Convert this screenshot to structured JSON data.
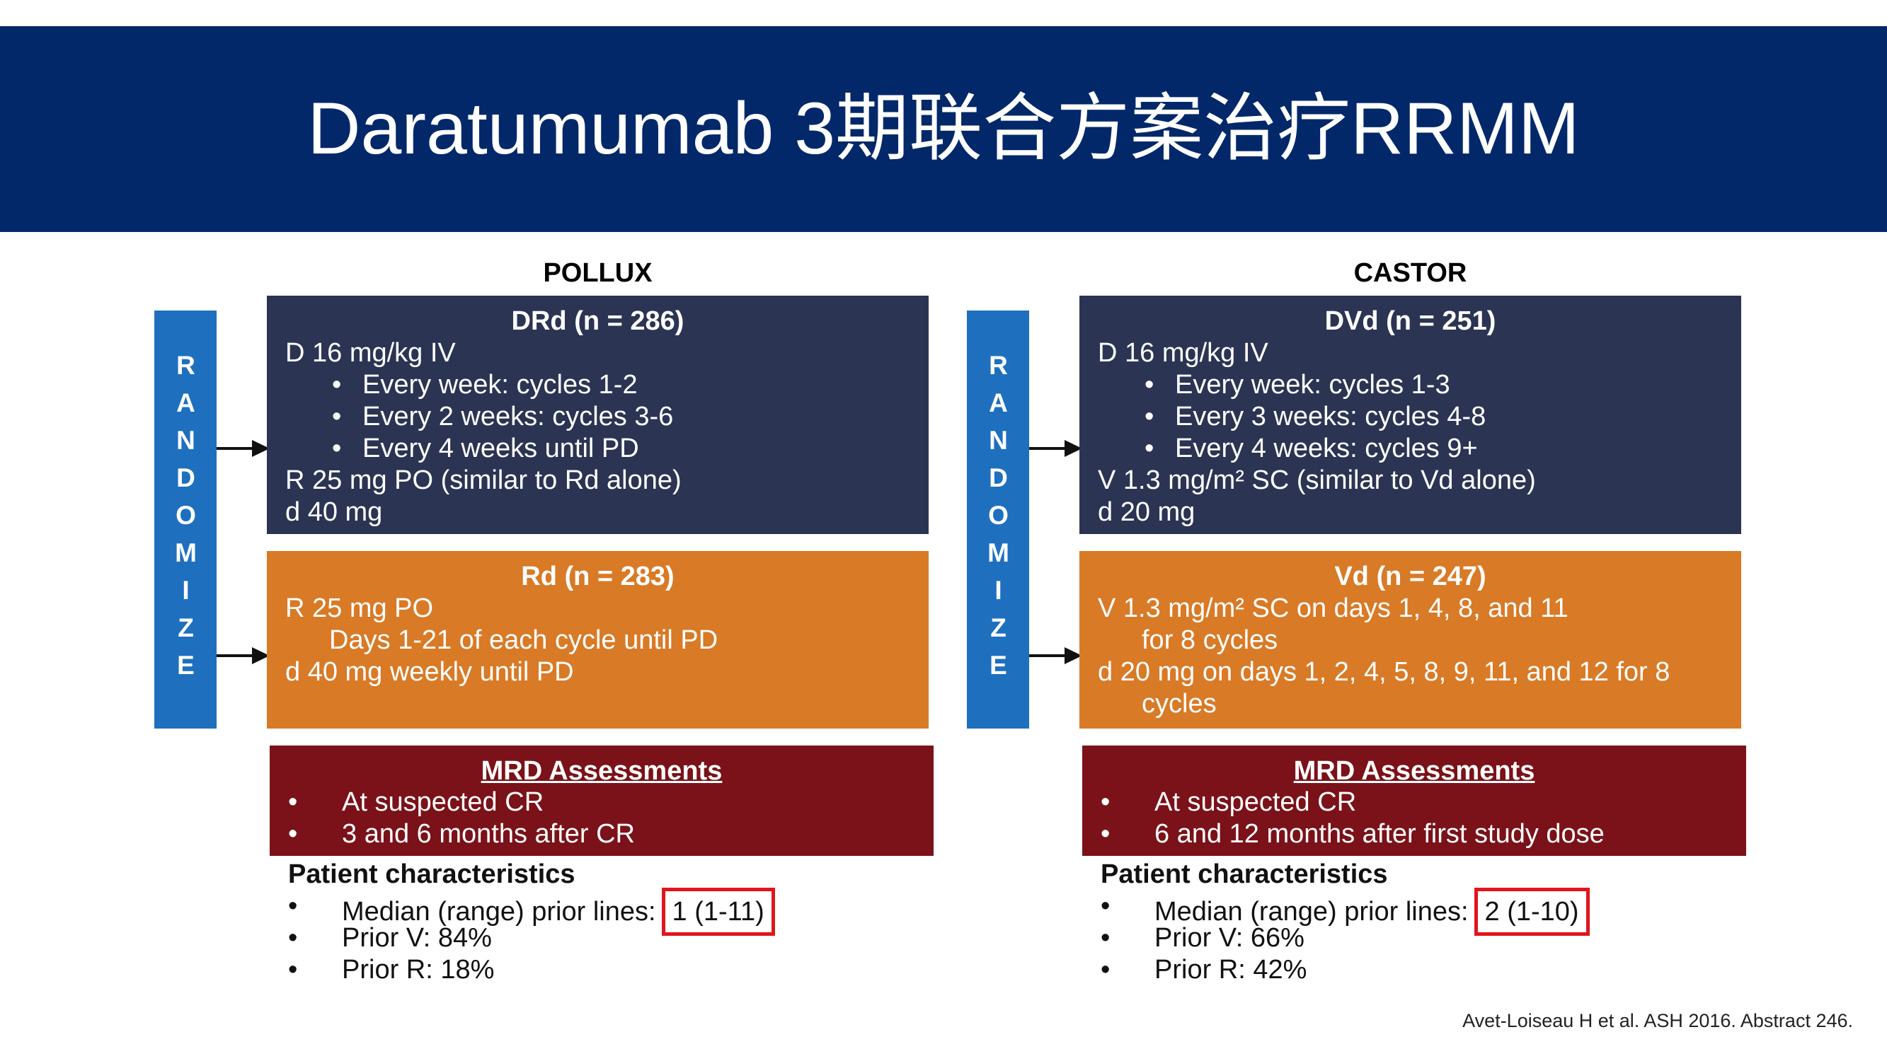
{
  "title": "Daratumumab 3期联合方案治疗RRMM",
  "trials": [
    {
      "name": "POLLUX",
      "randomize": "RANDOMIZE",
      "arms": [
        {
          "title": "DRd (n = 286)",
          "content": [
            {
              "text": "D 16 mg/kg IV",
              "items": [
                "Every week: cycles 1-2",
                "Every 2 weeks: cycles 3-6",
                "Every 4 weeks until PD"
              ]
            },
            {
              "text": "R 25 mg PO (similar to Rd alone)"
            },
            {
              "text": "d 40 mg"
            }
          ]
        },
        {
          "title": "Rd (n = 283)",
          "content": [
            {
              "text": "R 25 mg PO",
              "continuation": [
                "Days 1-21 of each cycle until PD"
              ]
            },
            {
              "text": "d 40 mg weekly until PD"
            }
          ]
        }
      ],
      "mrd": {
        "title": "MRD Assessments",
        "items": [
          "At suspected CR",
          "3 and 6 months after CR"
        ]
      },
      "patients": {
        "title": "Patient characteristics",
        "median_label": "Median (range) prior lines:",
        "median_value": "1 (1-11)",
        "items": [
          "Prior V: 84%",
          "Prior R: 18%"
        ]
      }
    },
    {
      "name": "CASTOR",
      "randomize": "RANDOMIZE",
      "arms": [
        {
          "title": "DVd (n = 251)",
          "content": [
            {
              "text": "D 16 mg/kg IV",
              "items": [
                "Every week: cycles 1-3",
                "Every 3 weeks: cycles 4-8",
                "Every 4 weeks: cycles 9+"
              ]
            },
            {
              "text": "V 1.3 mg/m² SC (similar to Vd alone)"
            },
            {
              "text": "d 20 mg"
            }
          ]
        },
        {
          "title": "Vd (n = 247)",
          "content": [
            {
              "text": "V 1.3 mg/m² SC on days 1, 4, 8, and 11",
              "continuation": [
                "for 8 cycles"
              ]
            },
            {
              "text": "d 20 mg on days 1, 2, 4, 5, 8, 9, 11, and 12 for 8",
              "continuation": [
                "cycles"
              ]
            }
          ]
        }
      ],
      "mrd": {
        "title": "MRD Assessments",
        "items": [
          "At suspected CR",
          "6 and 12 months after first study dose"
        ]
      },
      "patients": {
        "title": "Patient characteristics",
        "median_label": "Median (range) prior lines:",
        "median_value": "2 (1-10)",
        "items": [
          "Prior V: 66%",
          "Prior R: 42%"
        ]
      }
    }
  ],
  "citation": "Avet-Loiseau H et al. ASH 2016. Abstract 246."
}
